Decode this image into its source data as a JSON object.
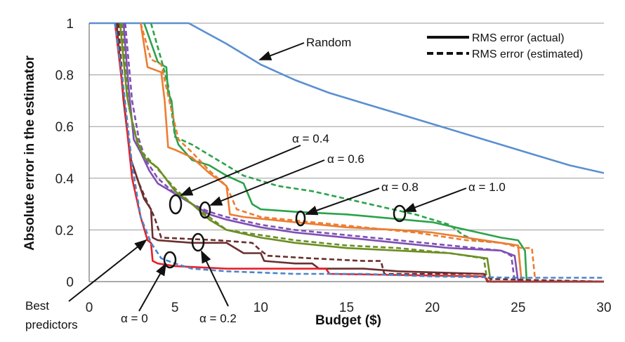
{
  "chart_data": {
    "type": "line",
    "title": "",
    "xlabel": "Budget ($)",
    "ylabel": "Absolute error in the estimator",
    "xlim": [
      0,
      30
    ],
    "ylim": [
      0,
      1
    ],
    "x_ticks": [
      "0",
      "5",
      "10",
      "15",
      "20",
      "25",
      "30"
    ],
    "y_ticks": [
      "0",
      "0.2",
      "0.4",
      "0.6",
      "0.8",
      "1"
    ],
    "grid": "horizontal",
    "legend": {
      "placement": "top-right",
      "entries": [
        {
          "label": "RMS error (actual)",
          "style": "solid"
        },
        {
          "label": "RMS error (estimated)",
          "style": "dashed"
        }
      ]
    },
    "series": [
      {
        "key": "random",
        "color": "#5b8fd0",
        "style": "solid",
        "x": [
          0,
          5.8,
          8,
          10,
          12,
          14,
          16,
          18,
          20,
          22,
          24,
          26,
          28,
          30
        ],
        "y": [
          1.0,
          1.0,
          0.92,
          0.84,
          0.78,
          0.73,
          0.69,
          0.65,
          0.61,
          0.57,
          0.53,
          0.49,
          0.45,
          0.42
        ]
      },
      {
        "key": "alpha1-actual",
        "color": "#2ca24a",
        "style": "solid",
        "x": [
          3.2,
          4.0,
          4.2,
          4.5,
          4.6,
          4.8,
          5.0,
          5.2,
          6.0,
          7.0,
          8.0,
          9.0,
          9.5,
          10,
          12,
          15,
          20,
          22,
          24,
          25,
          25.4,
          25.5,
          30
        ],
        "y": [
          1.0,
          0.85,
          0.84,
          0.83,
          0.73,
          0.7,
          0.57,
          0.53,
          0.47,
          0.45,
          0.41,
          0.38,
          0.3,
          0.28,
          0.27,
          0.26,
          0.23,
          0.2,
          0.17,
          0.16,
          0.12,
          0.0,
          0.0
        ]
      },
      {
        "key": "alpha1-estimated",
        "color": "#2ca24a",
        "style": "dashed",
        "x": [
          3.6,
          4.2,
          4.6,
          5.0,
          6.0,
          8.0,
          9.0,
          11.0,
          13.0,
          15.0,
          17.0,
          19.0,
          21.0,
          21.8,
          22.5,
          24.0,
          25.0,
          25.2,
          30
        ],
        "y": [
          1.0,
          0.86,
          0.76,
          0.56,
          0.53,
          0.45,
          0.41,
          0.37,
          0.35,
          0.32,
          0.29,
          0.26,
          0.22,
          0.18,
          0.16,
          0.15,
          0.14,
          0.0,
          0.0
        ]
      },
      {
        "key": "alpha08-actual",
        "color": "#ed7d31",
        "style": "solid",
        "x": [
          3.0,
          3.4,
          3.8,
          4.2,
          4.4,
          4.6,
          5.0,
          6.0,
          7.0,
          8.0,
          8.2,
          9.0,
          12,
          15,
          18,
          20,
          22,
          24,
          25.0,
          25.2,
          30
        ],
        "y": [
          1.0,
          0.83,
          0.82,
          0.81,
          0.7,
          0.52,
          0.51,
          0.48,
          0.42,
          0.37,
          0.26,
          0.25,
          0.23,
          0.21,
          0.2,
          0.19,
          0.17,
          0.15,
          0.14,
          0.0,
          0.0
        ]
      },
      {
        "key": "alpha08-estimated",
        "color": "#ed7d31",
        "style": "dashed",
        "x": [
          3.0,
          3.6,
          4.2,
          4.6,
          5.2,
          6.0,
          7.0,
          8.0,
          8.6,
          10,
          13,
          16,
          19,
          22,
          24,
          25.2,
          25.8,
          26.0,
          30
        ],
        "y": [
          1.0,
          0.86,
          0.84,
          0.72,
          0.55,
          0.5,
          0.43,
          0.37,
          0.28,
          0.25,
          0.23,
          0.21,
          0.19,
          0.16,
          0.15,
          0.13,
          0.13,
          0.0,
          0.0
        ]
      },
      {
        "key": "alpha06-actual",
        "color": "#7f4fb5",
        "style": "solid",
        "x": [
          2.0,
          2.3,
          2.6,
          3.0,
          3.5,
          4.0,
          5.0,
          6.0,
          7.0,
          8.0,
          10,
          12,
          15,
          18,
          21,
          24,
          24.8,
          25.0,
          30
        ],
        "y": [
          1.0,
          0.75,
          0.55,
          0.5,
          0.43,
          0.38,
          0.34,
          0.3,
          0.26,
          0.24,
          0.21,
          0.19,
          0.17,
          0.15,
          0.13,
          0.12,
          0.1,
          0.0,
          0.0
        ]
      },
      {
        "key": "alpha06-estimated",
        "color": "#7f4fb5",
        "style": "dashed",
        "x": [
          2.1,
          2.5,
          2.9,
          3.3,
          4.0,
          5.0,
          6.0,
          7.0,
          8.0,
          10,
          12,
          15,
          18,
          21,
          24,
          24.6,
          24.8,
          30
        ],
        "y": [
          1.0,
          0.7,
          0.55,
          0.47,
          0.4,
          0.34,
          0.3,
          0.27,
          0.25,
          0.22,
          0.2,
          0.18,
          0.16,
          0.14,
          0.12,
          0.1,
          0.0,
          0.0
        ]
      },
      {
        "key": "alpha04-actual",
        "color": "#6b8e23",
        "style": "solid",
        "x": [
          1.8,
          2.2,
          2.5,
          2.8,
          3.2,
          4.0,
          5.0,
          6.0,
          7.0,
          8.0,
          10,
          12,
          15,
          18,
          21,
          23.2,
          23.4,
          30
        ],
        "y": [
          1.0,
          0.72,
          0.62,
          0.54,
          0.48,
          0.44,
          0.35,
          0.3,
          0.24,
          0.2,
          0.17,
          0.15,
          0.13,
          0.12,
          0.11,
          0.09,
          0.0,
          0.0
        ]
      },
      {
        "key": "alpha04-estimated",
        "color": "#6b8e23",
        "style": "dashed",
        "x": [
          1.9,
          2.3,
          2.7,
          3.1,
          3.8,
          5.0,
          6.0,
          7.0,
          8.0,
          10,
          12,
          15,
          18,
          21,
          23.0,
          23.2,
          30
        ],
        "y": [
          1.0,
          0.68,
          0.57,
          0.5,
          0.45,
          0.36,
          0.3,
          0.25,
          0.2,
          0.18,
          0.16,
          0.14,
          0.13,
          0.11,
          0.09,
          0.0,
          0.0
        ]
      },
      {
        "key": "alpha02-actual",
        "color": "#6b2f2f",
        "style": "solid",
        "x": [
          1.6,
          2.0,
          2.4,
          2.8,
          3.2,
          3.6,
          3.7,
          4.0,
          6.0,
          8.0,
          9.0,
          10,
          10.2,
          12,
          13,
          13.4,
          16,
          18,
          23.0,
          23.2,
          30
        ],
        "y": [
          1.0,
          0.7,
          0.48,
          0.4,
          0.32,
          0.28,
          0.17,
          0.16,
          0.15,
          0.15,
          0.11,
          0.11,
          0.08,
          0.07,
          0.07,
          0.05,
          0.05,
          0.04,
          0.03,
          0.0,
          0.0
        ]
      },
      {
        "key": "alpha02-estimated",
        "color": "#6b2f2f",
        "style": "dashed",
        "x": [
          1.7,
          2.1,
          2.5,
          2.9,
          3.3,
          3.8,
          4.2,
          7.5,
          9.5,
          10,
          10.4,
          13,
          16,
          17.0,
          17.2,
          20,
          23,
          23.4,
          30
        ],
        "y": [
          1.0,
          0.65,
          0.45,
          0.38,
          0.32,
          0.25,
          0.17,
          0.16,
          0.15,
          0.12,
          0.1,
          0.09,
          0.08,
          0.08,
          0.03,
          0.03,
          0.03,
          0.01,
          0.0
        ]
      },
      {
        "key": "alpha0-actual",
        "color": "#e8202a",
        "style": "solid",
        "x": [
          1.5,
          2.0,
          2.5,
          3.0,
          3.4,
          3.6,
          3.7,
          4.0,
          5.0,
          8.0,
          13.8,
          14.0,
          23.0,
          23.3,
          30
        ],
        "y": [
          1.0,
          0.72,
          0.4,
          0.25,
          0.16,
          0.15,
          0.08,
          0.07,
          0.06,
          0.05,
          0.05,
          0.03,
          0.02,
          0.0,
          0.0
        ]
      },
      {
        "key": "best-predictors",
        "color": "#4a86c8",
        "style": "dashed",
        "x": [
          1.5,
          2.0,
          2.5,
          3.0,
          3.6,
          4.2,
          5.0,
          6.0,
          8.0,
          12.0,
          16.0,
          20.0,
          25.0,
          30.0
        ],
        "y": [
          1.0,
          0.75,
          0.45,
          0.25,
          0.15,
          0.09,
          0.07,
          0.05,
          0.04,
          0.03,
          0.03,
          0.02,
          0.015,
          0.015
        ]
      }
    ],
    "annotations": [
      {
        "key": "random",
        "text": "Random"
      },
      {
        "key": "a04",
        "text": "α = 0.4"
      },
      {
        "key": "a06",
        "text": "α = 0.6"
      },
      {
        "key": "a08",
        "text": "α = 0.8"
      },
      {
        "key": "a10",
        "text": "α = 1.0"
      },
      {
        "key": "best1",
        "text": "Best"
      },
      {
        "key": "best2",
        "text": "predictors"
      },
      {
        "key": "a0",
        "text": "α = 0"
      },
      {
        "key": "a02",
        "text": "α = 0.2"
      }
    ]
  }
}
